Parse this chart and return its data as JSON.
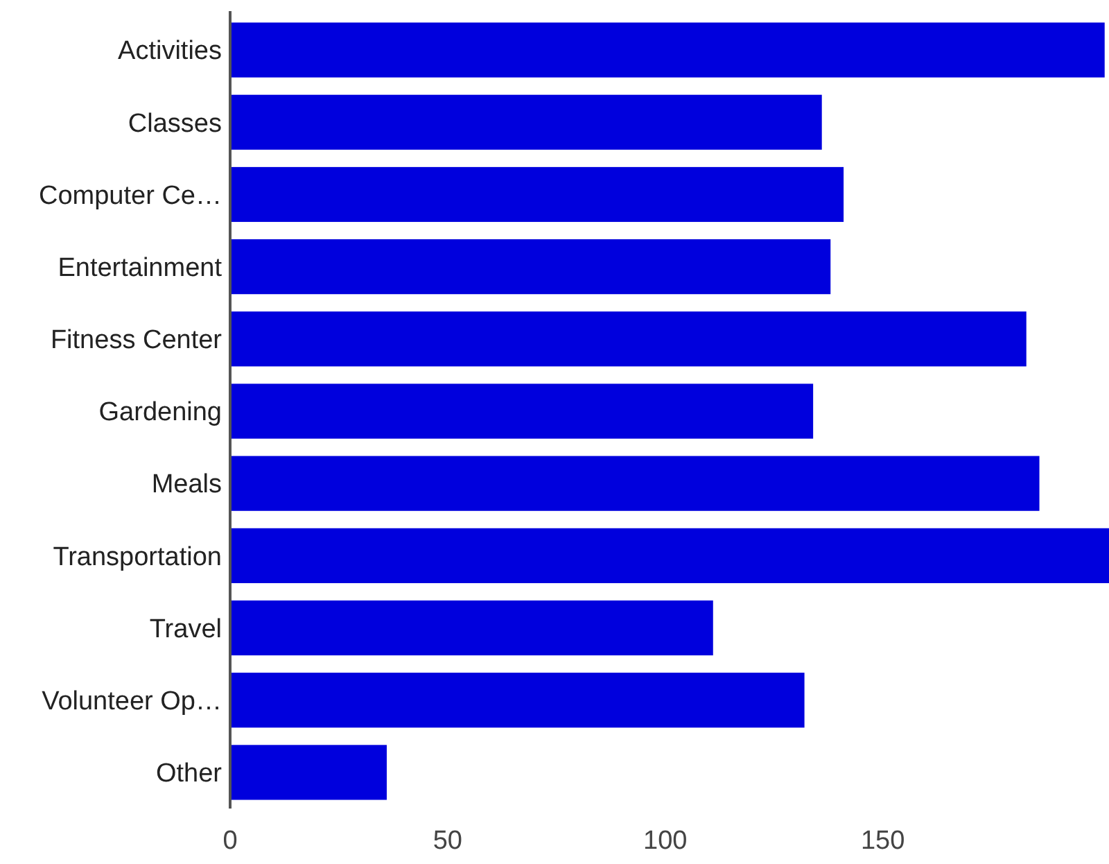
{
  "chart_data": {
    "type": "bar",
    "orientation": "horizontal",
    "categories": [
      "Activities",
      "Classes",
      "Computer Ce…",
      "Entertainment",
      "Fitness Center",
      "Gardening",
      "Meals",
      "Transportation",
      "Travel",
      "Volunteer Op…",
      "Other"
    ],
    "values": [
      201,
      136,
      141,
      138,
      183,
      134,
      186,
      202,
      111,
      132,
      36
    ],
    "color": "#0000dd",
    "xlim": [
      0,
      202
    ],
    "xticks": [
      0,
      50,
      100,
      150
    ],
    "grid": false
  }
}
